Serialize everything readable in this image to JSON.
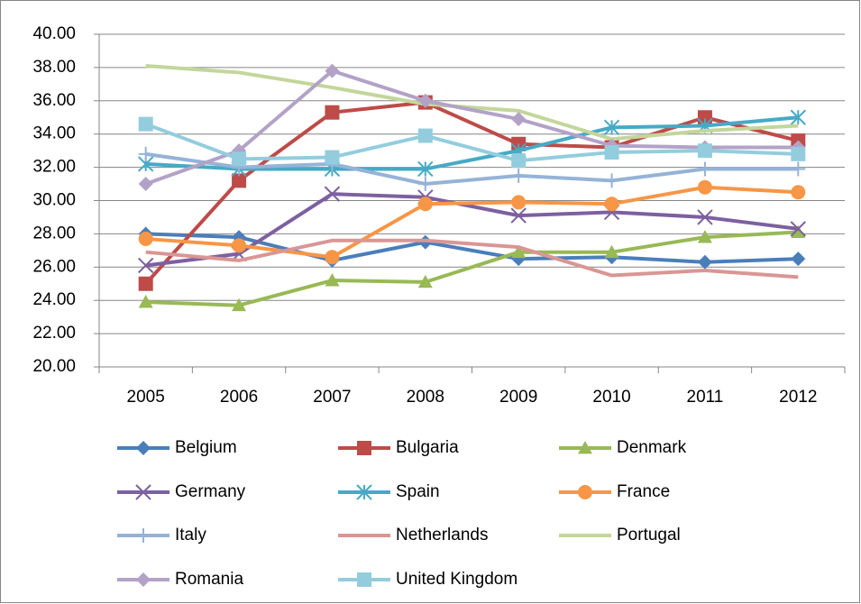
{
  "chart_data": {
    "type": "line",
    "categories": [
      "2005",
      "2006",
      "2007",
      "2008",
      "2009",
      "2010",
      "2011",
      "2012"
    ],
    "ylim": [
      20,
      40
    ],
    "yticks": [
      {
        "value": 20,
        "label": "20.00"
      },
      {
        "value": 22,
        "label": "22.00"
      },
      {
        "value": 24,
        "label": "24.00"
      },
      {
        "value": 26,
        "label": "26.00"
      },
      {
        "value": 28,
        "label": "28.00"
      },
      {
        "value": 30,
        "label": "30.00"
      },
      {
        "value": 32,
        "label": "32.00"
      },
      {
        "value": 34,
        "label": "34.00"
      },
      {
        "value": 36,
        "label": "36.00"
      },
      {
        "value": 38,
        "label": "38.00"
      },
      {
        "value": 40,
        "label": "40.00"
      }
    ],
    "grid": true,
    "legend": "bottom",
    "series": [
      {
        "name": "Belgium",
        "color": "#4a7ebb",
        "marker": "diamond",
        "values": [
          28.0,
          27.8,
          26.4,
          27.5,
          26.5,
          26.6,
          26.3,
          26.5
        ]
      },
      {
        "name": "Bulgaria",
        "color": "#be4b48",
        "marker": "square",
        "values": [
          25.0,
          31.2,
          35.3,
          35.9,
          33.4,
          33.2,
          35.0,
          33.6
        ]
      },
      {
        "name": "Denmark",
        "color": "#98b954",
        "marker": "triangle",
        "values": [
          23.9,
          23.7,
          25.2,
          25.1,
          26.9,
          26.9,
          27.8,
          28.1
        ]
      },
      {
        "name": "Germany",
        "color": "#7d60a0",
        "marker": "x",
        "values": [
          26.1,
          26.8,
          30.4,
          30.2,
          29.1,
          29.3,
          29.0,
          28.3
        ]
      },
      {
        "name": "Spain",
        "color": "#46aac5",
        "marker": "star",
        "values": [
          32.2,
          31.9,
          31.9,
          31.9,
          33.0,
          34.4,
          34.5,
          35.0
        ]
      },
      {
        "name": "France",
        "color": "#f79646",
        "marker": "circle",
        "values": [
          27.7,
          27.3,
          26.6,
          29.8,
          29.9,
          29.8,
          30.8,
          30.5
        ]
      },
      {
        "name": "Italy",
        "color": "#95b3d7",
        "marker": "plus",
        "values": [
          32.8,
          32.0,
          32.2,
          31.0,
          31.5,
          31.2,
          31.9,
          31.9
        ]
      },
      {
        "name": "Netherlands",
        "color": "#d99694",
        "marker": "none",
        "values": [
          26.9,
          26.4,
          27.6,
          27.6,
          27.2,
          25.5,
          25.8,
          25.4
        ]
      },
      {
        "name": "Portugal",
        "color": "#c3d69b",
        "marker": "none",
        "values": [
          38.1,
          37.7,
          36.8,
          35.8,
          35.4,
          33.7,
          34.2,
          34.5
        ]
      },
      {
        "name": "Romania",
        "color": "#b3a2c7",
        "marker": "diamond",
        "values": [
          31.0,
          33.0,
          37.8,
          36.0,
          34.9,
          33.3,
          33.2,
          33.2
        ]
      },
      {
        "name": "United Kingdom",
        "color": "#93cddd",
        "marker": "square",
        "values": [
          34.6,
          32.5,
          32.6,
          33.9,
          32.4,
          32.9,
          33.0,
          32.8
        ]
      }
    ]
  }
}
